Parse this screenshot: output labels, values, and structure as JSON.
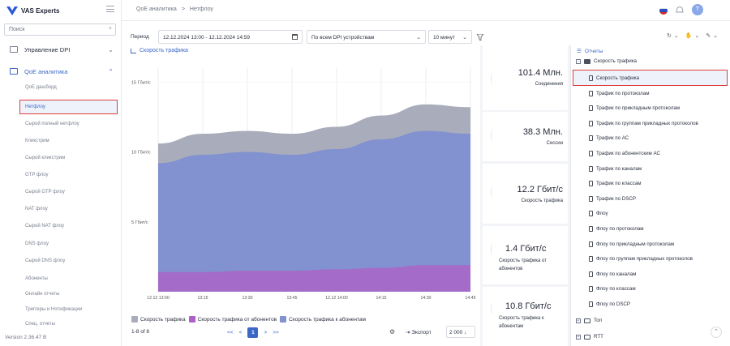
{
  "app": {
    "brand": "VAS Experts",
    "version": "Version 2.36.47 B"
  },
  "sidebar": {
    "search_placeholder": "Поиск",
    "groups": [
      {
        "label": "Управление DPI",
        "expanded": false
      },
      {
        "label": "QoE аналитика",
        "expanded": true
      }
    ],
    "items": [
      "QoE дашборд",
      "Нетфлоу",
      "Сырой полный нетфлоу",
      "Кликстрим",
      "Сырой кликстрим",
      "GTP флоу",
      "Сырой GTP флоу",
      "NAT флоу",
      "Сырой NAT флоу",
      "DNS флоу",
      "Сырой DNS флоу",
      "Абоненты",
      "Онлайн отчеты",
      "Триггеры и Нотификации",
      "Спец. отчеты"
    ],
    "selected_item": "Нетфлоу"
  },
  "header": {
    "breadcrumb": [
      "QoE аналитика",
      "Нетфлоу"
    ],
    "avatar_letter": "T"
  },
  "filters": {
    "period_label": "Период",
    "period_value": "12.12.2024 13:00 - 12.12.2024 14:59",
    "dpi_value": "По всем DPI устройствам",
    "interval_value": "10 минут"
  },
  "chart_title": "Скорость трафика",
  "chart_data": {
    "type": "area",
    "x": [
      "12.12 13:00",
      "13:15",
      "13:30",
      "13:45",
      "12.12 14:00",
      "14:15",
      "14:30",
      "14:45"
    ],
    "yticks": [
      "15 Гбит/с",
      "10 Гбит/с",
      "5 Гбит/с"
    ],
    "ylim": [
      0,
      16
    ],
    "series": [
      {
        "name": "Скорость трафика",
        "color": "#a9adbb",
        "values": [
          10.6,
          11.3,
          11.5,
          11.3,
          11.8,
          12.6,
          13.4,
          13.2
        ]
      },
      {
        "name": "Скорость трафика от абонентов",
        "color": "#b05fc6",
        "values": [
          1.4,
          1.4,
          1.5,
          1.5,
          1.6,
          1.7,
          1.9,
          1.9
        ]
      },
      {
        "name": "Скорость трафика к абонентам",
        "color": "#8291cf",
        "values": [
          9.2,
          9.8,
          10.0,
          9.8,
          10.2,
          10.9,
          11.5,
          11.3
        ]
      }
    ],
    "legend_position": "bottom-left"
  },
  "pager": {
    "count": "1-8 of 8",
    "first": "<<",
    "prev": "<",
    "current": "1",
    "next": ">",
    "last": ">>",
    "export": "Экспорт",
    "page_size": "2 000"
  },
  "kpis": [
    {
      "value": "101.4 Млн.",
      "label": "Соединения"
    },
    {
      "value": "38.3 Млн.",
      "label": "Сессии"
    },
    {
      "value": "12.2 Гбит/с",
      "label": "Скорость трафика"
    },
    {
      "value": "1.4 Гбит/с",
      "label": "Скорость трафика от абонентов"
    },
    {
      "value": "10.8 Гбит/с",
      "label": "Скорость трафика к абонентам"
    }
  ],
  "reports": {
    "title": "Отчеты",
    "folder": "Скорость трафика",
    "items": [
      "Скорость трафика",
      "Трафик по протоколам",
      "Трафик по прикладным протоколам",
      "Трафик по группам прикладных протоколов",
      "Трафик по АС",
      "Трафик по абонентским АС",
      "Трафик по каналам",
      "Трафик по классам",
      "Трафик по DSCP",
      "Флоу",
      "Флоу по протоколам",
      "Флоу по прикладным протоколам",
      "Флоу по группам прикладных протоколов",
      "Флоу по каналам",
      "Флоу по классам",
      "Флоу по DSCP"
    ],
    "other_folders": [
      "Топ",
      "RTT"
    ]
  }
}
